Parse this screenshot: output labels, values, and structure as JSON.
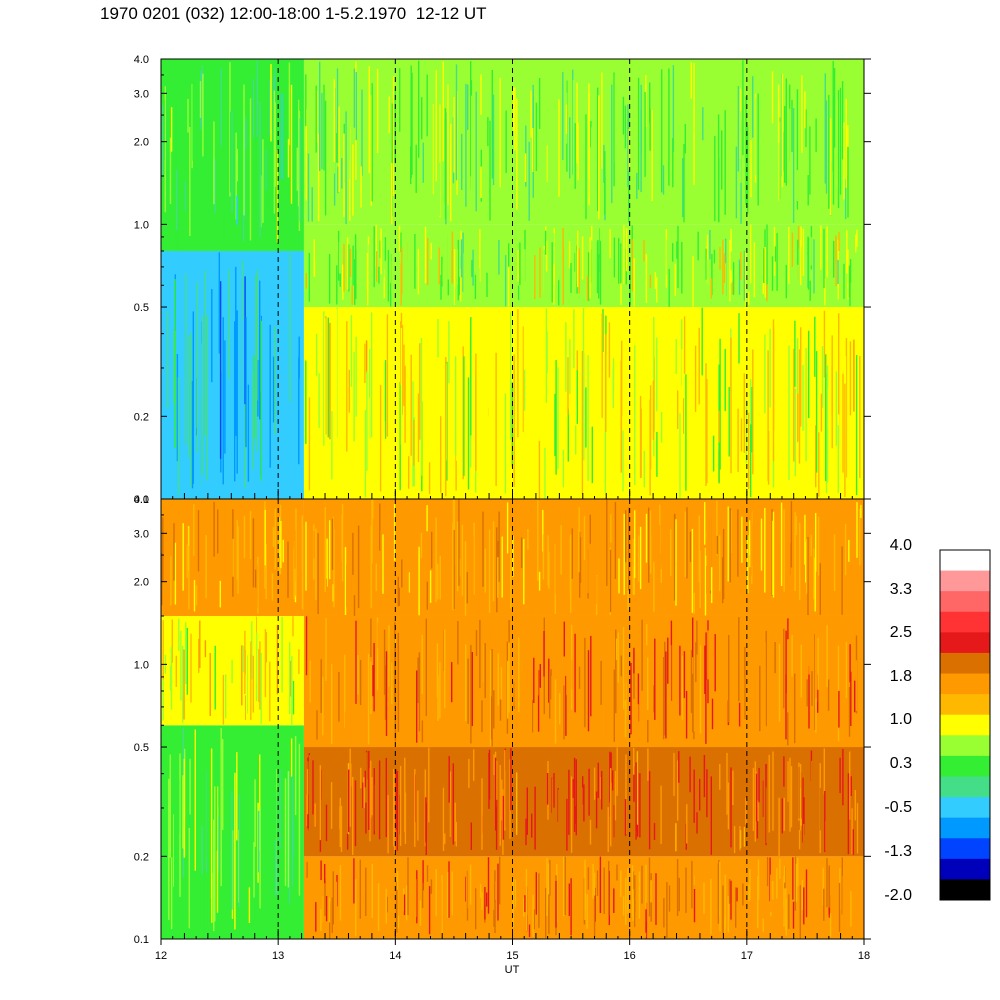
{
  "title": "1970 0201 (032) 12:00-18:00 1-5.2.1970  12-12 UT",
  "chart_data": [
    {
      "type": "heatmap",
      "panel": "upper",
      "xlabel": "",
      "ylabel": "",
      "xlim": [
        12,
        18
      ],
      "ylim": [
        0.1,
        4.0
      ],
      "yscale": "log",
      "y_ticks": [
        "4.0",
        "3.0",
        "2.0",
        "1.0",
        "0.5",
        "0.2",
        "0.1"
      ],
      "y_tick_values": [
        4.0,
        3.0,
        2.0,
        1.0,
        0.5,
        0.2,
        0.1
      ],
      "x_dashed_gridlines": [
        13,
        14,
        15,
        16,
        17
      ],
      "regions": [
        {
          "x0": 12.0,
          "x1": 13.22,
          "y0": 0.1,
          "y1": 0.8,
          "level": -0.5
        },
        {
          "x0": 12.0,
          "x1": 13.22,
          "y0": 0.8,
          "y1": 4.0,
          "level": 0.3
        },
        {
          "x0": 13.22,
          "x1": 18.0,
          "y0": 0.1,
          "y1": 0.5,
          "level": 1.0
        },
        {
          "x0": 13.22,
          "x1": 18.0,
          "y0": 0.5,
          "y1": 1.0,
          "level": 0.7
        },
        {
          "x0": 13.22,
          "x1": 18.0,
          "y0": 1.0,
          "y1": 4.0,
          "level": 0.5
        }
      ]
    },
    {
      "type": "heatmap",
      "panel": "lower",
      "xlabel": "UT",
      "ylabel": "",
      "xlim": [
        12,
        18
      ],
      "ylim": [
        0.1,
        4.0
      ],
      "yscale": "log",
      "x_ticks": [
        "12",
        "13",
        "14",
        "15",
        "16",
        "17",
        "18"
      ],
      "x_tick_values": [
        12,
        13,
        14,
        15,
        16,
        17,
        18
      ],
      "y_ticks": [
        "4.0",
        "3.0",
        "2.0",
        "1.0",
        "0.5",
        "0.2",
        "0.1"
      ],
      "y_tick_values": [
        4.0,
        3.0,
        2.0,
        1.0,
        0.5,
        0.2,
        0.1
      ],
      "x_dashed_gridlines": [
        13,
        14,
        15,
        16,
        17
      ],
      "regions": [
        {
          "x0": 12.0,
          "x1": 13.22,
          "y0": 0.1,
          "y1": 0.6,
          "level": 0.4
        },
        {
          "x0": 12.0,
          "x1": 13.22,
          "y0": 0.6,
          "y1": 1.5,
          "level": 1.1
        },
        {
          "x0": 12.0,
          "x1": 13.22,
          "y0": 1.5,
          "y1": 4.0,
          "level": 1.7
        },
        {
          "x0": 13.22,
          "x1": 18.0,
          "y0": 0.1,
          "y1": 0.2,
          "level": 1.9
        },
        {
          "x0": 13.22,
          "x1": 18.0,
          "y0": 0.2,
          "y1": 0.5,
          "level": 2.2
        },
        {
          "x0": 13.22,
          "x1": 18.0,
          "y0": 0.5,
          "y1": 1.5,
          "level": 2.0
        },
        {
          "x0": 13.22,
          "x1": 18.0,
          "y0": 1.5,
          "y1": 4.0,
          "level": 1.6
        }
      ]
    }
  ],
  "colorbar": {
    "labels": [
      "4.0",
      "3.3",
      "2.5",
      "1.8",
      "1.0",
      "0.3",
      "-0.5",
      "-1.3",
      "-2.0"
    ],
    "colors": [
      "#ffffff",
      "#ff9999",
      "#ff6666",
      "#ff3333",
      "#e6191a",
      "#d97000",
      "#ff9900",
      "#ffb800",
      "#ffff00",
      "#99ff33",
      "#33ee33",
      "#44dd88",
      "#33ccff",
      "#0099ff",
      "#0044ff",
      "#0000bb",
      "#000000"
    ]
  },
  "level_colors": [
    {
      "level": -2.0,
      "color": "#000000"
    },
    {
      "level": -1.3,
      "color": "#0044ff"
    },
    {
      "level": -0.8,
      "color": "#0099ff"
    },
    {
      "level": -0.5,
      "color": "#33ccff"
    },
    {
      "level": -0.1,
      "color": "#44dd88"
    },
    {
      "level": 0.3,
      "color": "#33ee33"
    },
    {
      "level": 0.7,
      "color": "#99ff33"
    },
    {
      "level": 1.0,
      "color": "#ffff00"
    },
    {
      "level": 1.4,
      "color": "#ffb800"
    },
    {
      "level": 1.8,
      "color": "#ff9900"
    },
    {
      "level": 2.2,
      "color": "#d97000"
    },
    {
      "level": 2.5,
      "color": "#e6191a"
    }
  ]
}
